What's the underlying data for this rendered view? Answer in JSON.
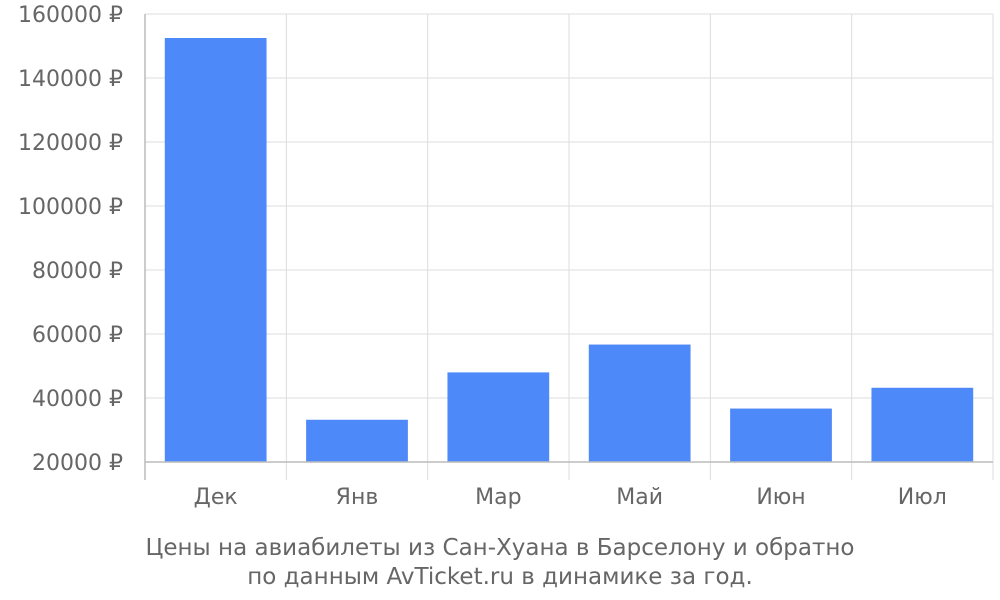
{
  "chart_data": {
    "type": "bar",
    "categories": [
      "Дек",
      "Янв",
      "Мар",
      "Май",
      "Июн",
      "Июл"
    ],
    "values": [
      152500,
      33200,
      48000,
      56700,
      36700,
      43200
    ],
    "ylim": [
      20000,
      160000
    ],
    "yticks": [
      20000,
      40000,
      60000,
      80000,
      100000,
      120000,
      140000,
      160000
    ],
    "ytick_labels": [
      "20000 ₽",
      "40000 ₽",
      "60000 ₽",
      "80000 ₽",
      "100000 ₽",
      "120000 ₽",
      "140000 ₽",
      "160000 ₽"
    ],
    "grid": true,
    "bar_color": "#4d89f9",
    "caption": [
      "Цены на авиабилеты из Сан-Хуана в Барселону и обратно",
      "по данным AvTicket.ru в динамике за год."
    ]
  }
}
